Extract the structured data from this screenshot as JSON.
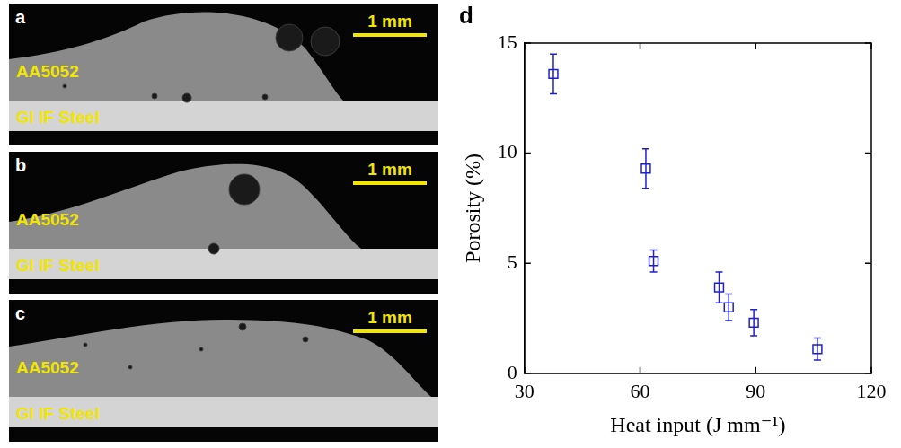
{
  "micrographs": [
    {
      "label": "a",
      "top_material": "AA5052",
      "bottom_material": "GI IF Steel",
      "scale_bar": "1 mm"
    },
    {
      "label": "b",
      "top_material": "AA5052",
      "bottom_material": "GI IF Steel",
      "scale_bar": "1 mm"
    },
    {
      "label": "c",
      "top_material": "AA5052",
      "bottom_material": "GI IF Steel",
      "scale_bar": "1 mm"
    }
  ],
  "chart_data": {
    "label": "d",
    "type": "scatter",
    "x_label": "Heat input (J mm⁻¹)",
    "y_label": "Porosity (%)",
    "x": [
      37.5,
      61.5,
      63.5,
      80.5,
      83,
      89.5,
      106
    ],
    "values": [
      13.6,
      9.3,
      5.1,
      3.9,
      3.0,
      2.3,
      1.1
    ],
    "errors": [
      0.9,
      0.9,
      0.5,
      0.7,
      0.6,
      0.6,
      0.5
    ],
    "color": "#1f1fd0",
    "marker": "square",
    "xlim": [
      30,
      120
    ],
    "xticks": [
      30,
      60,
      90,
      120
    ],
    "ylim": [
      0,
      15
    ],
    "yticks": [
      0,
      5,
      10,
      15
    ],
    "grid": false
  }
}
